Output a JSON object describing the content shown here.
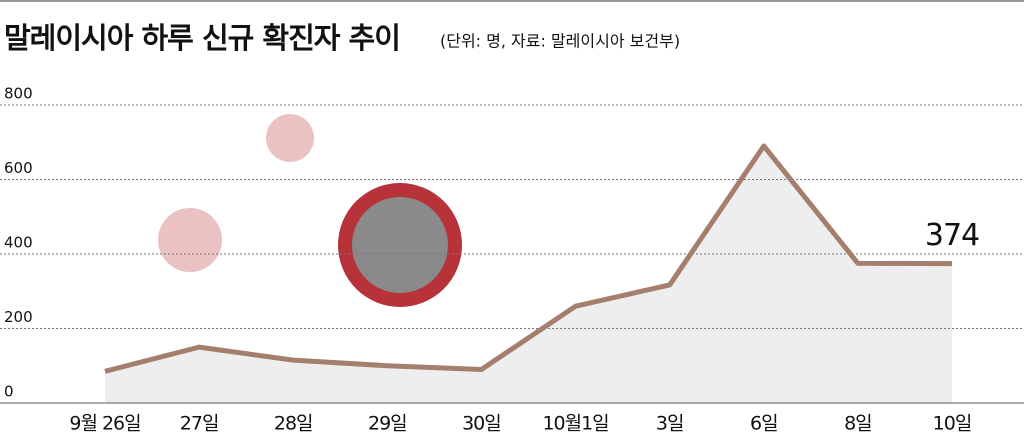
{
  "chart_data": {
    "type": "line",
    "title": "말레이시아 하루 신규 확진자 추이",
    "subtitle": "(단위: 명, 자료: 말레이시아 보건부)",
    "categories": [
      "9월 26일",
      "27일",
      "28일",
      "29일",
      "30일",
      "10월1일",
      "3일",
      "6일",
      "8일",
      "10일"
    ],
    "values": [
      85,
      150,
      115,
      100,
      90,
      260,
      317,
      690,
      375,
      374
    ],
    "value_labels": [
      null,
      null,
      null,
      null,
      null,
      null,
      null,
      null,
      null,
      "374"
    ],
    "color": "#a57f6e",
    "area_color": "#efeeef",
    "ylim": [
      0,
      800
    ],
    "yticks": [
      0,
      200,
      400,
      600,
      800
    ],
    "grid": true
  }
}
